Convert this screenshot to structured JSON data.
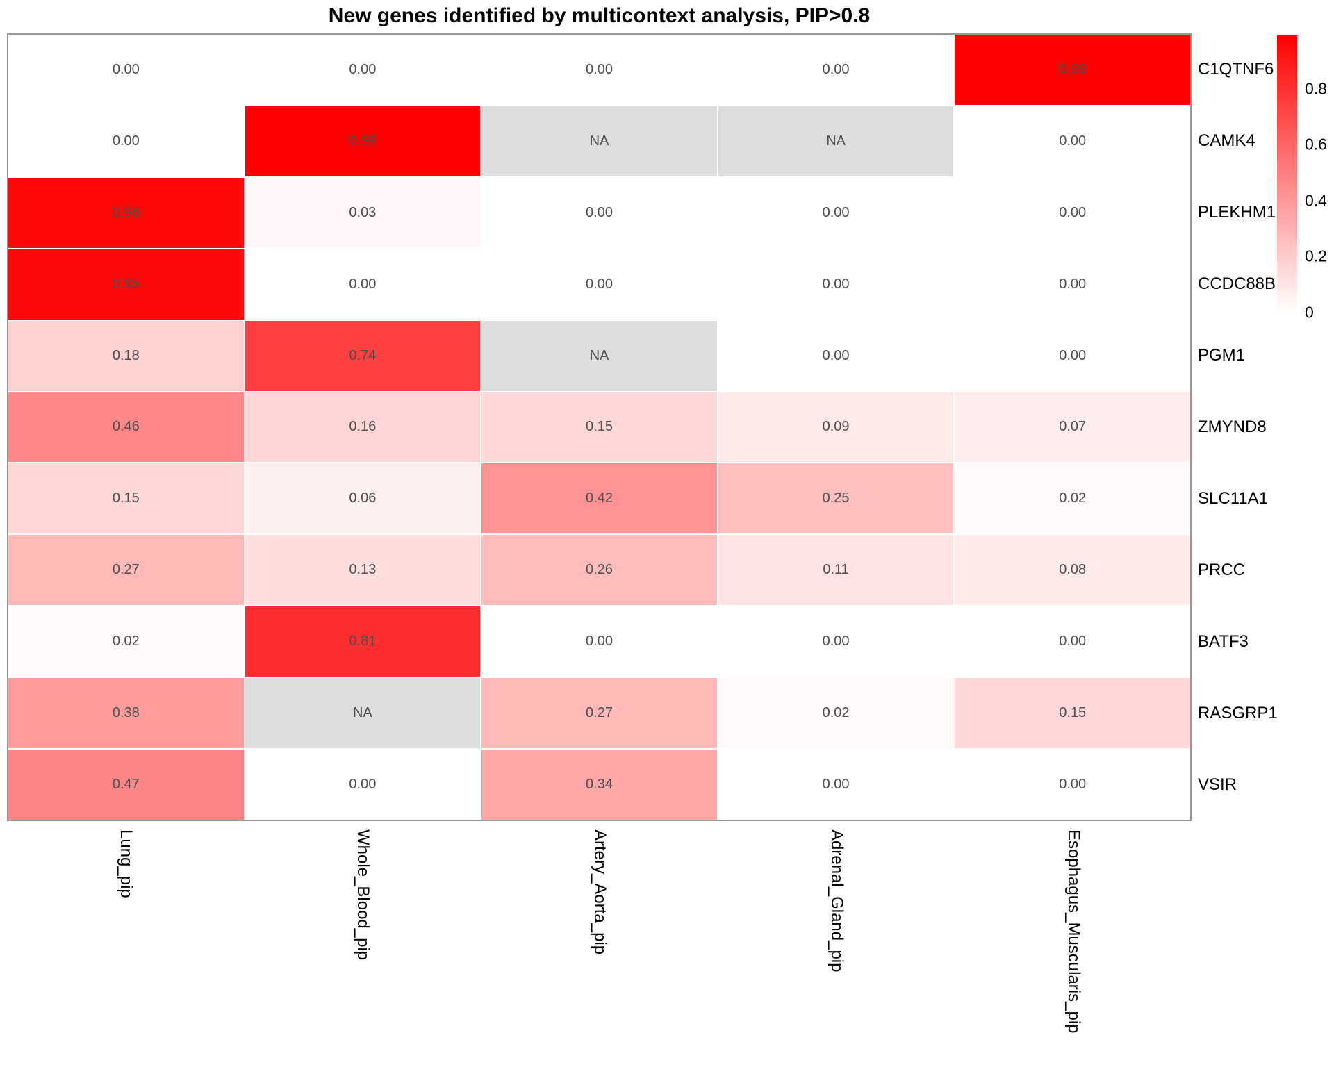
{
  "title": "New genes identified by multicontext analysis, PIP>0.8",
  "chart_data": {
    "type": "heatmap",
    "rows": [
      "C1QTNF6",
      "CAMK4",
      "PLEKHM1",
      "CCDC88B",
      "PGM1",
      "ZMYND8",
      "SLC11A1",
      "PRCC",
      "BATF3",
      "RASGRP1",
      "VSIR"
    ],
    "columns": [
      "Lung_pip",
      "Whole_Blood_pip",
      "Artery_Aorta_pip",
      "Adrenal_Gland_pip",
      "Esophagus_Muscularis_pip"
    ],
    "values": [
      [
        0.0,
        0.0,
        0.0,
        0.0,
        0.99
      ],
      [
        0.0,
        0.99,
        null,
        null,
        0.0
      ],
      [
        0.96,
        0.03,
        0.0,
        0.0,
        0.0
      ],
      [
        0.95,
        0.0,
        0.0,
        0.0,
        0.0
      ],
      [
        0.18,
        0.74,
        null,
        0.0,
        0.0
      ],
      [
        0.46,
        0.16,
        0.15,
        0.09,
        0.07
      ],
      [
        0.15,
        0.06,
        0.42,
        0.25,
        0.02
      ],
      [
        0.27,
        0.13,
        0.26,
        0.11,
        0.08
      ],
      [
        0.02,
        0.81,
        0.0,
        0.0,
        0.0
      ],
      [
        0.38,
        null,
        0.27,
        0.02,
        0.15
      ],
      [
        0.47,
        0.0,
        0.34,
        0.0,
        0.0
      ]
    ],
    "na_label": "NA",
    "value_decimals": 2,
    "row_labels_position": "right",
    "col_labels_position": "bottom",
    "grid_on": true,
    "colors": {
      "low_color": "#FFFFFF",
      "high_color": "#FF0000",
      "na_fill": "#DDDDDD",
      "border": "#999999",
      "value_text": "#4D4D4D",
      "label_text": "#000000"
    },
    "color_scale": {
      "min_value": 0,
      "max_value": 0.99
    },
    "legend": {
      "position": "right",
      "ticks": [
        {
          "label": "0.8",
          "value": 0.8
        },
        {
          "label": "0.6",
          "value": 0.6
        },
        {
          "label": "0.4",
          "value": 0.4
        },
        {
          "label": "0.2",
          "value": 0.2
        },
        {
          "label": "0",
          "value": 0.0
        }
      ]
    }
  }
}
